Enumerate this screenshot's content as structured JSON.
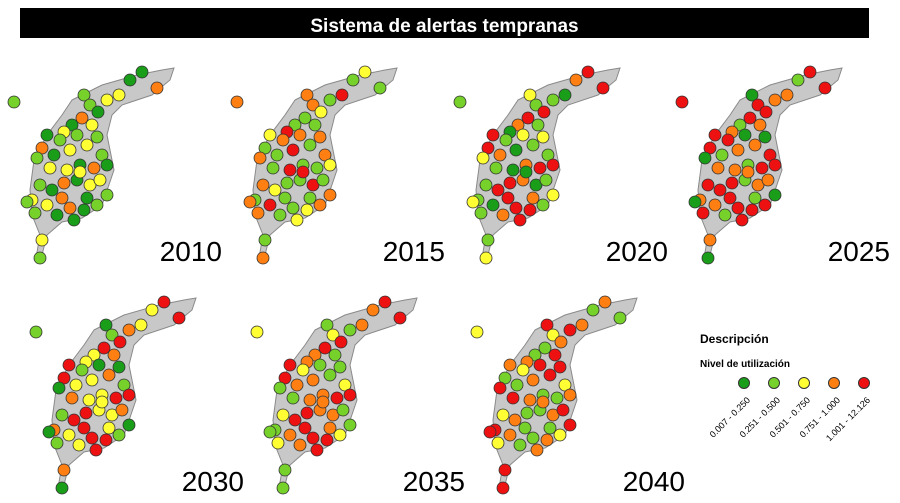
{
  "title": "Sistema de alertas tempranas",
  "panels": [
    {
      "year": "2010"
    },
    {
      "year": "2015"
    },
    {
      "year": "2020"
    },
    {
      "year": "2025"
    },
    {
      "year": "2030"
    },
    {
      "year": "2035"
    },
    {
      "year": "2040"
    }
  ],
  "legend": {
    "title": "Descripción",
    "subtitle": "Nivel de utilización",
    "classes": [
      {
        "label": "0.007 - 0.250",
        "color": "#1a9e1a"
      },
      {
        "label": "0.251 - 0.500",
        "color": "#76d12a"
      },
      {
        "label": "0.501 - 0.750",
        "color": "#ffff33"
      },
      {
        "label": "0.751 - 1.000",
        "color": "#ff7f12"
      },
      {
        "label": "1.001 - 12.126",
        "color": "#ee1111"
      }
    ]
  }
}
